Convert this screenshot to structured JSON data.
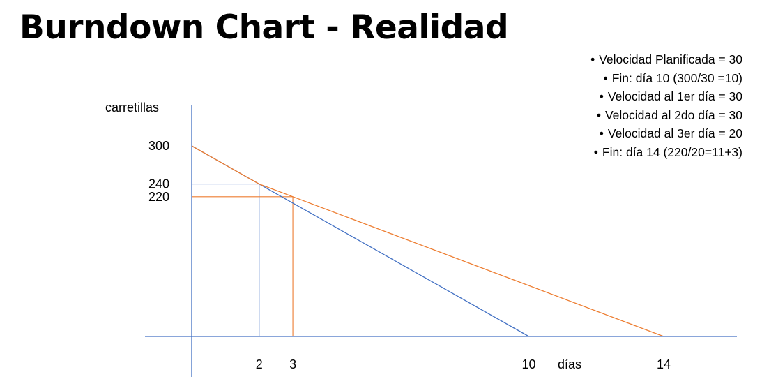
{
  "title": "Burndown Chart - Realidad",
  "notes": [
    "Velocidad Planificada = 30",
    "Fin: día 10 (300/30 =10)",
    "Velocidad al 1er día = 30",
    "Velocidad al 2do día = 30",
    "Velocidad al 3er día = 20",
    "Fin: día 14 (220/20=11+3)"
  ],
  "colors": {
    "axis": "#4472C4",
    "planned": "#4472C4",
    "real": "#ED7D31"
  },
  "chart_data": {
    "type": "line",
    "title": "",
    "xlabel": "días",
    "ylabel": "carretillas",
    "xlim": [
      0,
      14
    ],
    "ylim": [
      0,
      300
    ],
    "grid": false,
    "legend": "none",
    "x_ticks": [
      {
        "value": 2,
        "label": "2"
      },
      {
        "value": 3,
        "label": "3"
      },
      {
        "value": 10,
        "label": "10"
      },
      {
        "value": 14,
        "label": "14"
      }
    ],
    "y_ticks": [
      {
        "value": 300,
        "label": "300"
      },
      {
        "value": 240,
        "label": "240"
      },
      {
        "value": 220,
        "label": "220"
      }
    ],
    "series": [
      {
        "id": "planned",
        "points": [
          [
            0,
            300
          ],
          [
            10,
            0
          ]
        ]
      },
      {
        "id": "real",
        "points": [
          [
            0,
            300
          ],
          [
            2,
            240
          ],
          [
            3,
            220
          ],
          [
            14,
            0
          ]
        ]
      }
    ],
    "guides": [
      {
        "color": "planned",
        "at": [
          2,
          240
        ]
      },
      {
        "color": "real",
        "at": [
          3,
          220
        ]
      }
    ]
  }
}
